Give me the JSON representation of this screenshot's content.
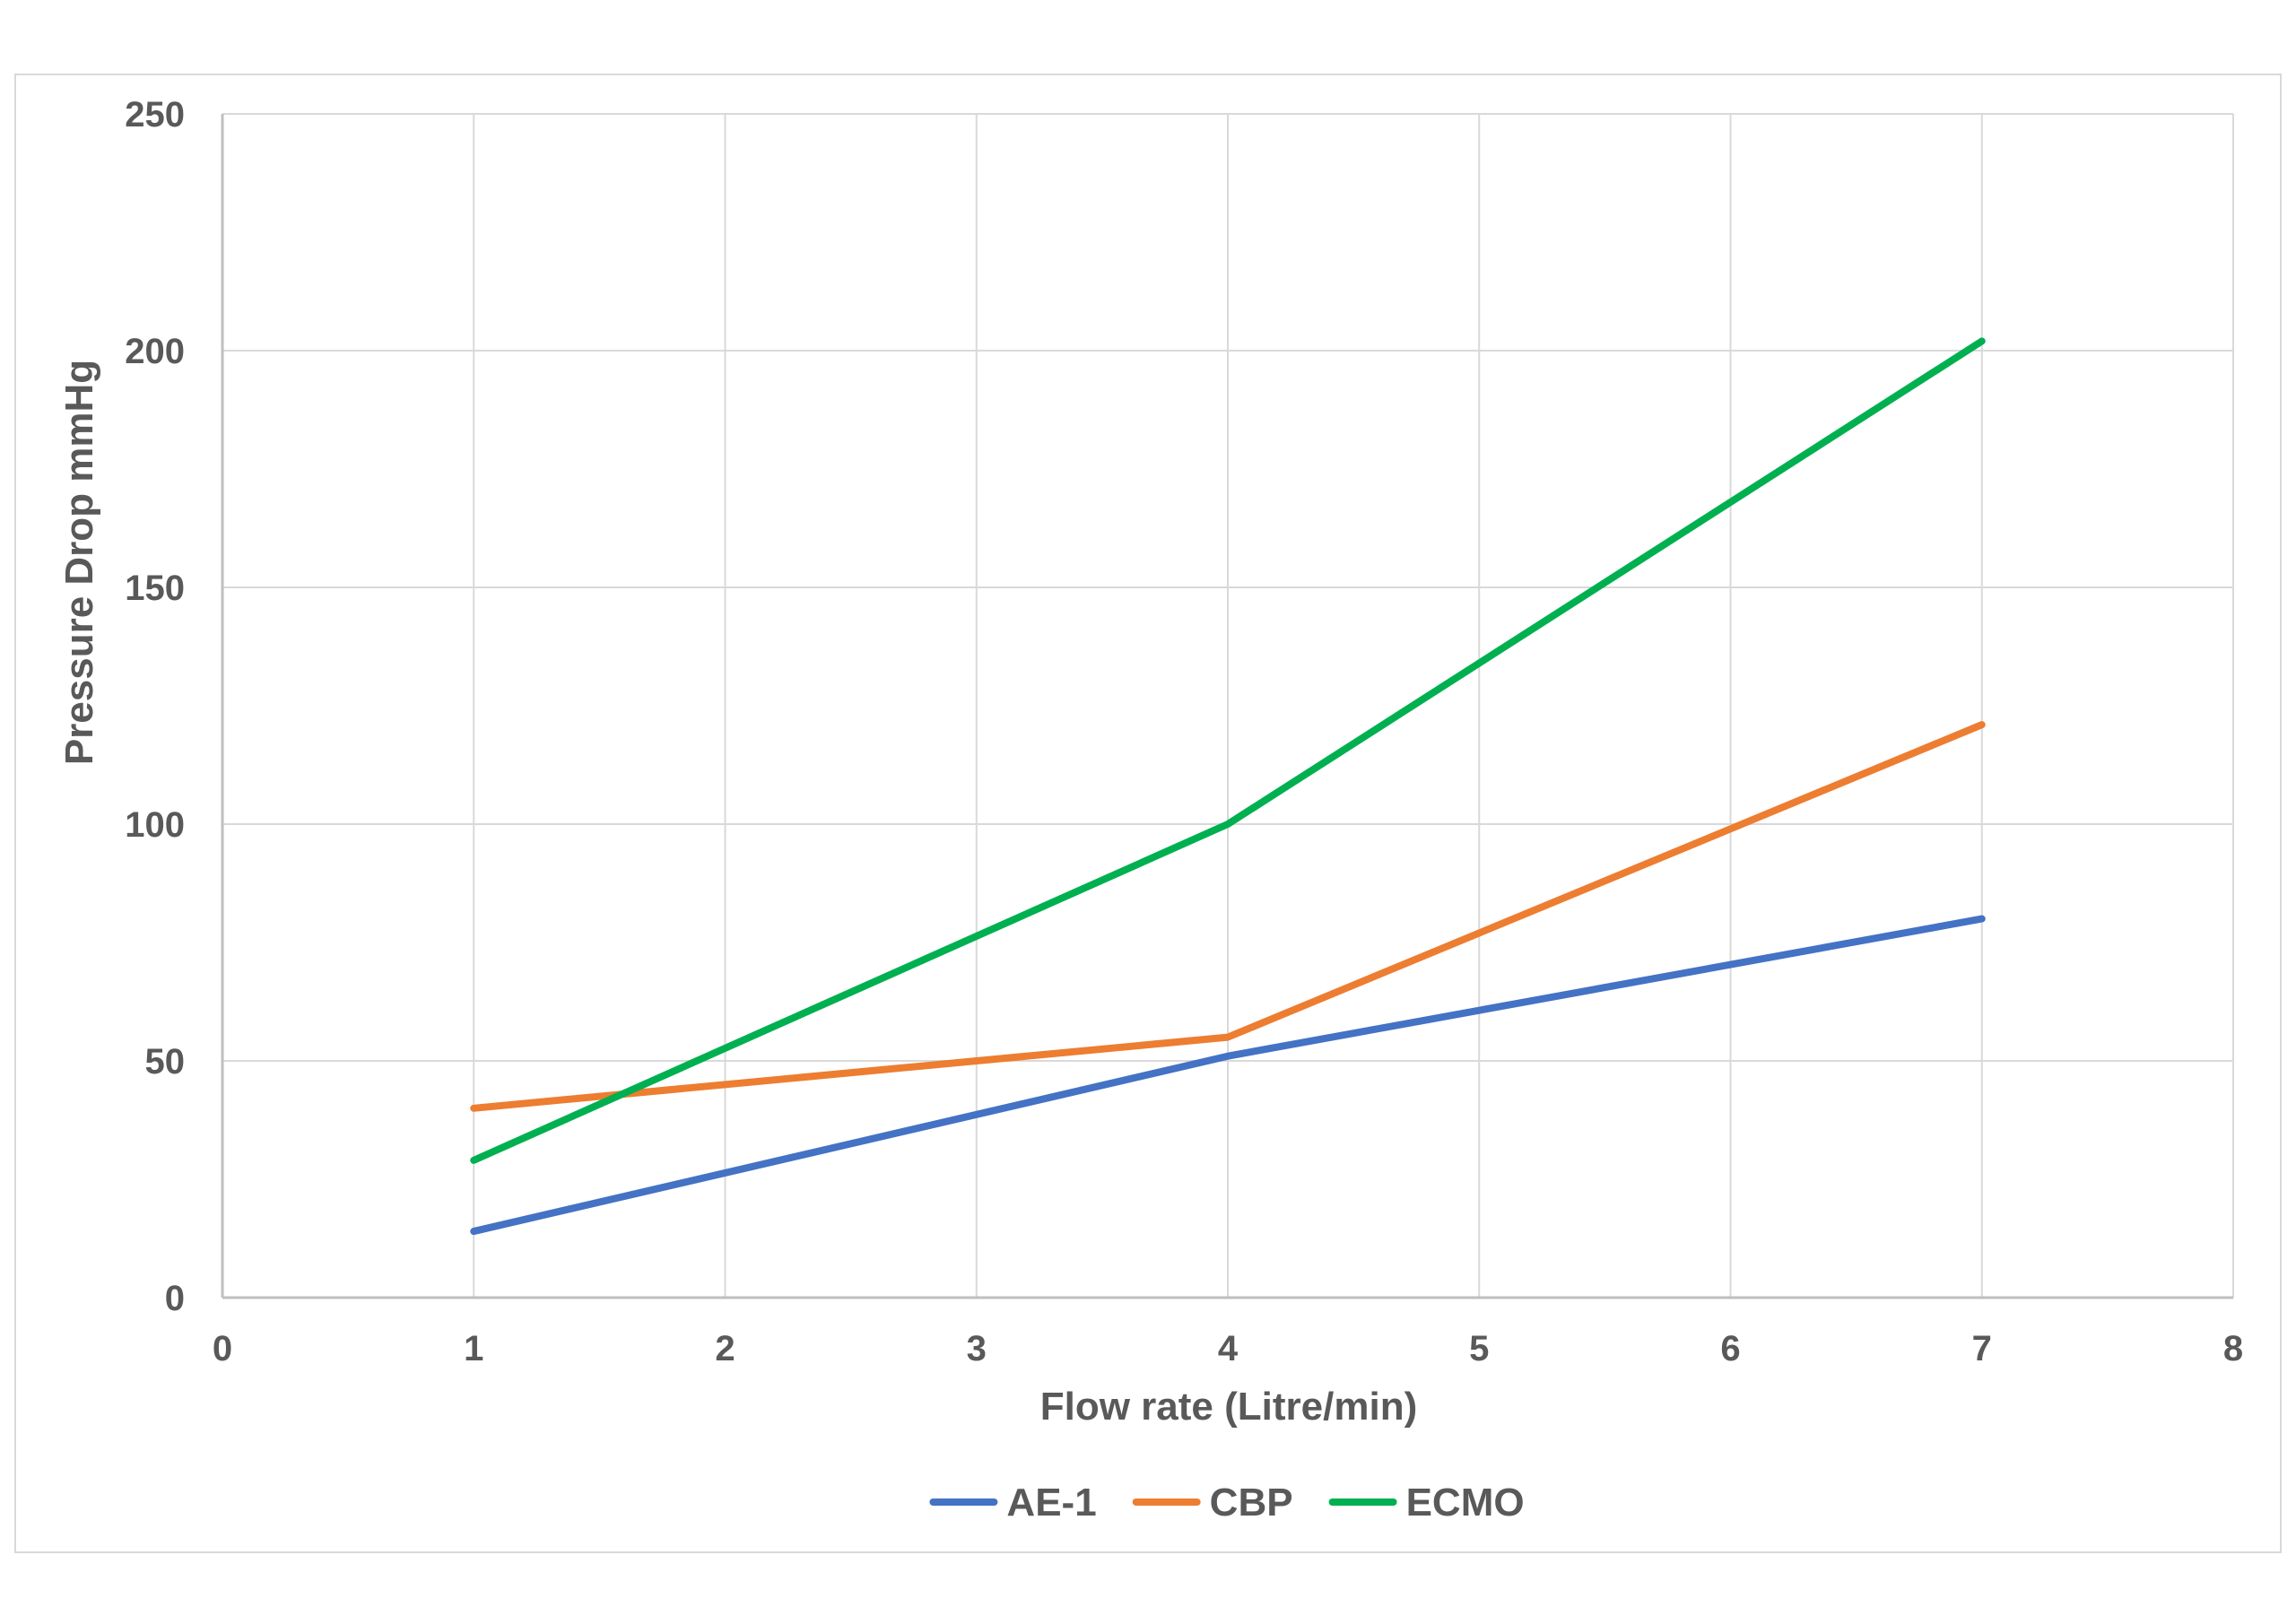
{
  "chart_data": {
    "type": "line",
    "title": "",
    "xlabel": "Flow rate (Litre/min)",
    "ylabel": "Pressure Drop mmHg",
    "xlim": [
      0,
      8
    ],
    "ylim": [
      0,
      250
    ],
    "xticks": [
      0,
      1,
      2,
      3,
      4,
      5,
      6,
      7,
      8
    ],
    "yticks": [
      0,
      50,
      100,
      150,
      200,
      250
    ],
    "grid": true,
    "legend_position": "bottom",
    "series": [
      {
        "name": "AE-1",
        "color": "#4472c4",
        "x": [
          1,
          4,
          7
        ],
        "y": [
          14,
          51,
          80
        ]
      },
      {
        "name": "CBP",
        "color": "#ed7d31",
        "x": [
          1,
          4,
          7
        ],
        "y": [
          40,
          55,
          121
        ]
      },
      {
        "name": "ECMO",
        "color": "#00b050",
        "x": [
          1,
          4,
          7
        ],
        "y": [
          29,
          100,
          202
        ]
      }
    ]
  }
}
